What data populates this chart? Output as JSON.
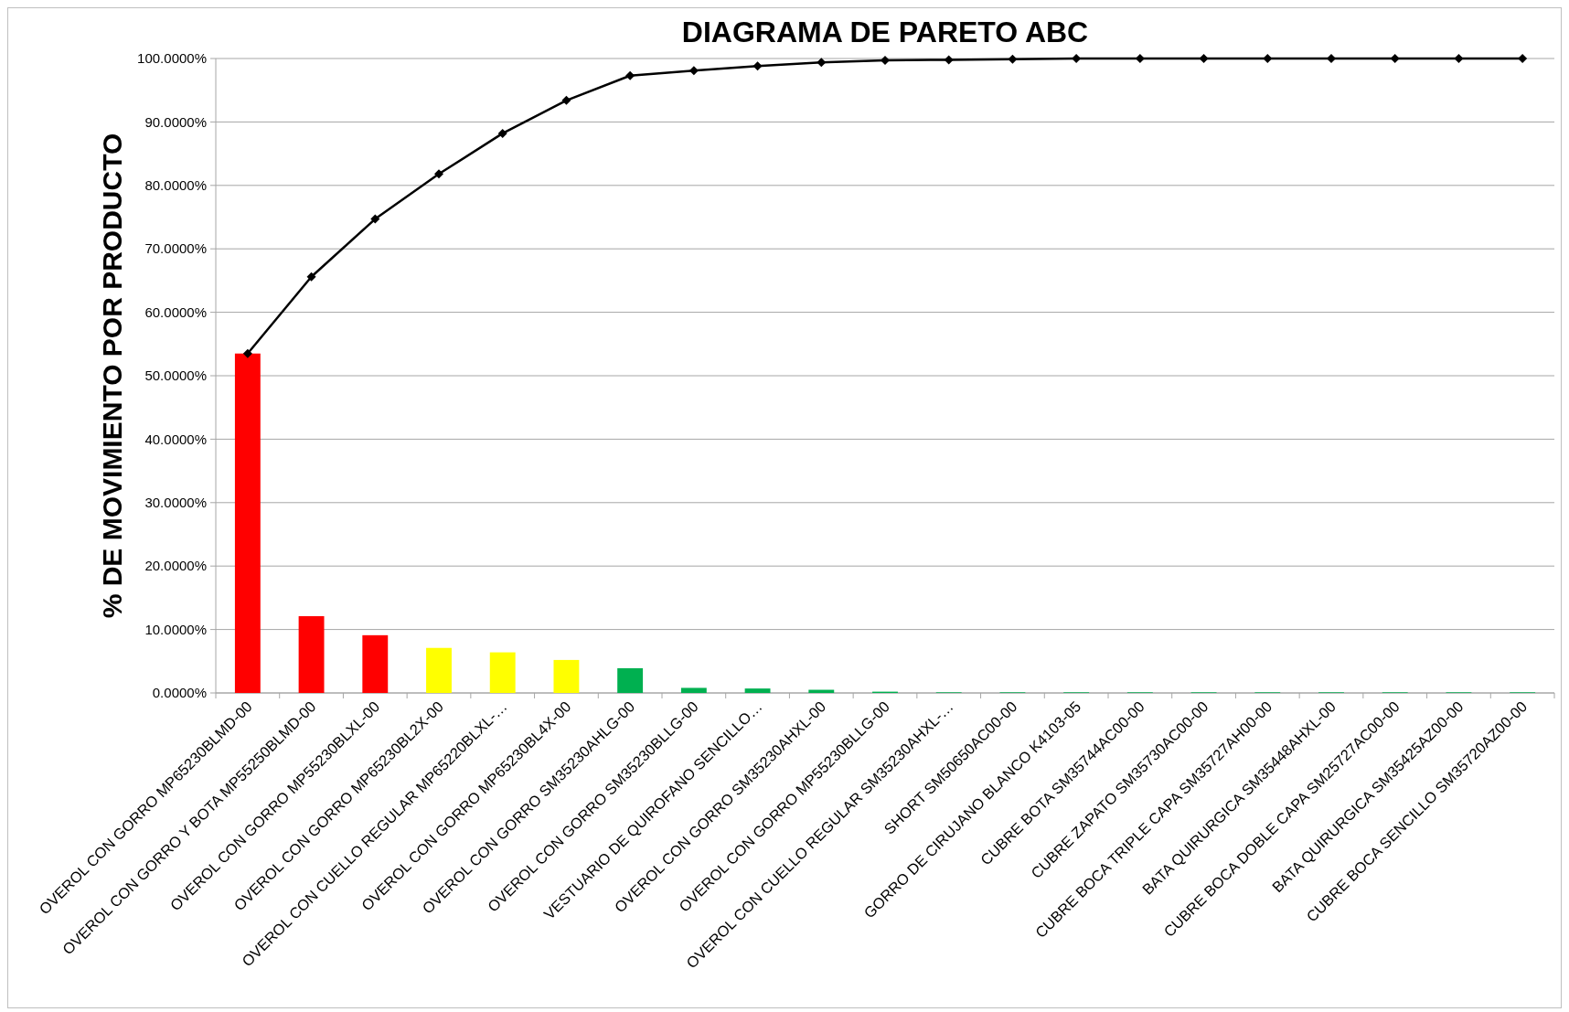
{
  "chart_data": {
    "type": "bar",
    "title": "DIAGRAMA DE PARETO ABC",
    "ylabel": "% DE MOVIMIENTO POR PRODUCTO",
    "categories": [
      "OVEROL CON GORRO MP65230BLMD-00",
      "OVEROL CON GORRO Y BOTA MP55250BLMD-00",
      "OVEROL CON GORRO MP55230BLXL-00",
      "OVEROL CON GORRO MP65230BL2X-00",
      "OVEROL CON CUELLO REGULAR MP65220BLXL-…",
      "OVEROL CON GORRO MP65230BL4X-00",
      "OVEROL CON GORRO SM35230AHLG-00",
      "OVEROL CON GORRO SM35230BLLG-00",
      "VESTUARIO DE QUIROFANO SENCILLO…",
      "OVEROL CON GORRO SM35230AHXL-00",
      "OVEROL CON GORRO MP55230BLLG-00",
      "OVEROL CON CUELLO REGULAR SM35230AHXL-…",
      "SHORT SM50650AC00-00",
      "GORRO DE CIRUJANO BLANCO K4103-05",
      "CUBRE BOTA SM35744AC00-00",
      "CUBRE ZAPATO SM35730AC00-00",
      "CUBRE BOCA TRIPLE CAPA SM35727AH00-00",
      "BATA QUIRURGICA SM35448AHXL-00",
      "CUBRE BOCA DOBLE CAPA SM25727AC00-00",
      "BATA QUIRURGICA SM35425AZ00-00",
      "CUBRE BOCA SENCILLO SM35720AZ00-00"
    ],
    "series": [
      {
        "values": [
          53.5,
          12.1,
          9.1,
          7.1,
          6.4,
          5.2,
          3.9,
          0.8,
          0.7,
          0.5,
          0.2,
          0.1,
          0.1,
          0.1,
          0.1,
          0.1,
          0.1,
          0.1,
          0.1,
          0.1,
          0.1
        ],
        "colors": [
          "#ff0000",
          "#ff0000",
          "#ff0000",
          "#ffff00",
          "#ffff00",
          "#ffff00",
          "#00b050",
          "#00b050",
          "#00b050",
          "#00b050",
          "#00b050",
          "#00b050",
          "#00b050",
          "#00b050",
          "#00b050",
          "#00b050",
          "#00b050",
          "#00b050",
          "#00b050",
          "#00b050",
          "#00b050"
        ]
      },
      {
        "type": "line",
        "color": "#000000",
        "marker": "diamond",
        "values": [
          53.5,
          65.6,
          74.7,
          81.8,
          88.2,
          93.4,
          97.3,
          98.1,
          98.8,
          99.4,
          99.7,
          99.8,
          99.9,
          100,
          100,
          100,
          100,
          100,
          100,
          100,
          100
        ]
      }
    ],
    "ylim": [
      0,
      100
    ],
    "yticks": [
      {
        "value": 0,
        "label": "0.0000%"
      },
      {
        "value": 10,
        "label": "10.0000%"
      },
      {
        "value": 20,
        "label": "20.0000%"
      },
      {
        "value": 30,
        "label": "30.0000%"
      },
      {
        "value": 40,
        "label": "40.0000%"
      },
      {
        "value": 50,
        "label": "50.0000%"
      },
      {
        "value": 60,
        "label": "60.0000%"
      },
      {
        "value": 70,
        "label": "70.0000%"
      },
      {
        "value": 80,
        "label": "80.0000%"
      },
      {
        "value": 90,
        "label": "90.0000%"
      },
      {
        "value": 100,
        "label": "100.0000%"
      }
    ],
    "grid": "y"
  }
}
